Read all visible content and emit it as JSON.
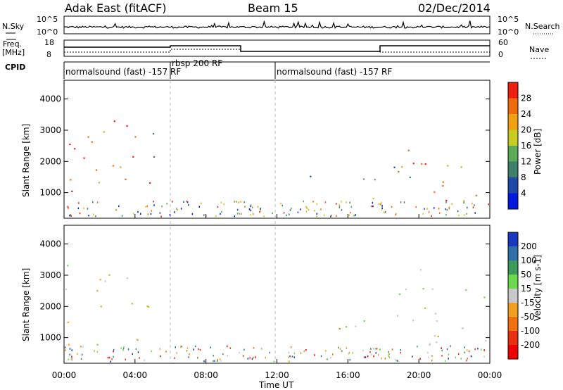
{
  "header": {
    "title": "Adak East (fitACF)",
    "beam": "Beam 15",
    "date": "02/Dec/2014"
  },
  "panels": {
    "nsky_label": "N.Sky",
    "nsky_ticks": [
      "10^5",
      "10^0"
    ],
    "nsearch_label": "N.Search",
    "nsearch_ticks": [
      "10^5",
      "10^0"
    ],
    "freq_label_line1": "Freq.",
    "freq_label_line2": "[MHz]",
    "freq_ticks": [
      "18",
      "8"
    ],
    "nave_label": "Nave",
    "nave_ticks": [
      "60",
      "0"
    ],
    "cpid_label": "CPID",
    "cpid_segments": [
      {
        "label": "normalsound (fast) -157 RF",
        "start_h": 0,
        "end_h": 6
      },
      {
        "label": "rbsp 200 RF",
        "start_h": 6,
        "end_h": 12
      },
      {
        "label": "normalsound (fast) -157 RF",
        "start_h": 12,
        "end_h": 24
      }
    ]
  },
  "axes": {
    "ylabel": "Slant Range [km]",
    "yticks": [
      "1000",
      "2000",
      "3000",
      "4000"
    ],
    "xticks": [
      "00:00",
      "04:00",
      "08:00",
      "12:00",
      "16:00",
      "20:00",
      "00:00"
    ],
    "xlabel": "Time UT"
  },
  "colorbars": {
    "power": {
      "label": "Power [dB]",
      "ticks": [
        "4",
        "8",
        "12",
        "16",
        "20",
        "24",
        "28"
      ],
      "colors": [
        "#0018e0",
        "#1f47a8",
        "#3f7f6a",
        "#5aaa58",
        "#c9cc20",
        "#f0a010",
        "#f06a10",
        "#ee2010"
      ]
    },
    "velocity": {
      "label": "Velocity [m s-1]",
      "ticks": [
        "200",
        "100",
        "50",
        "15",
        "-15",
        "-50",
        "-100",
        "-200"
      ],
      "colors": [
        "#1838c0",
        "#2f6ea8",
        "#3d9a5a",
        "#6cd84c",
        "#c8c8c8",
        "#f0a020",
        "#f07010",
        "#e83010",
        "#ee0000"
      ]
    }
  },
  "chart_data": [
    {
      "type": "heatmap",
      "title": "Power",
      "x_range_hours": [
        0,
        24
      ],
      "y_range_km": [
        180,
        4600
      ],
      "colorbar_label": "Power [dB]",
      "color_range": [
        0,
        32
      ],
      "regions": [
        {
          "t0": 0.0,
          "t1": 5.2,
          "r0": 700,
          "r1": 3400,
          "value": 26
        },
        {
          "t0": 4.4,
          "t1": 5.4,
          "r0": 1400,
          "r1": 3000,
          "value": 14
        },
        {
          "t0": 13.8,
          "t1": 15.8,
          "r0": 1300,
          "r1": 1550,
          "value": 6
        },
        {
          "t0": 15.8,
          "t1": 17.8,
          "r0": 300,
          "r1": 1600,
          "value": 14
        },
        {
          "t0": 16.8,
          "t1": 18.0,
          "r0": 300,
          "r1": 700,
          "value": 26
        },
        {
          "t0": 18.8,
          "t1": 24.0,
          "r0": 700,
          "r1": 2800,
          "value": 26
        },
        {
          "t0": 18.5,
          "t1": 19.6,
          "r0": 1500,
          "r1": 2700,
          "value": 10
        }
      ]
    },
    {
      "type": "heatmap",
      "title": "Velocity",
      "x_range_hours": [
        0,
        24
      ],
      "y_range_km": [
        180,
        4600
      ],
      "colorbar_label": "Velocity [m s-1]",
      "color_range": [
        -200,
        200
      ],
      "regions": [
        {
          "t0": 0.0,
          "t1": 5.2,
          "r0": 700,
          "r1": 2400,
          "value": 0
        },
        {
          "t0": 0.0,
          "t1": 5.2,
          "r0": 2400,
          "r1": 3400,
          "value": 0
        },
        {
          "t0": 13.8,
          "t1": 15.8,
          "r0": 1300,
          "r1": 1500,
          "value": -120
        },
        {
          "t0": 15.8,
          "t1": 17.8,
          "r0": 300,
          "r1": 1700,
          "value": 20
        },
        {
          "t0": 18.8,
          "t1": 24.0,
          "r0": 700,
          "r1": 2600,
          "value": 0
        },
        {
          "t0": 18.5,
          "t1": 21.0,
          "r0": 600,
          "r1": 3300,
          "value": 30
        }
      ]
    }
  ]
}
